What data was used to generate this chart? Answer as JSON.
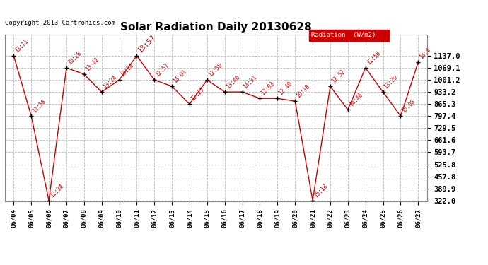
{
  "title": "Solar Radiation Daily 20130628",
  "copyright": "Copyright 2013 Cartronics.com",
  "legend_label": "Radiation  (W/m2)",
  "dates": [
    "06/04",
    "06/05",
    "06/06",
    "06/07",
    "06/08",
    "06/09",
    "06/10",
    "06/11",
    "06/12",
    "06/13",
    "06/14",
    "06/15",
    "06/16",
    "06/17",
    "06/18",
    "06/19",
    "06/20",
    "06/21",
    "06/22",
    "06/23",
    "06/24",
    "06/25",
    "06/26",
    "06/27"
  ],
  "values": [
    1137.0,
    797.4,
    322.0,
    1069.1,
    1033.0,
    933.2,
    1001.2,
    1137.0,
    1001.2,
    965.0,
    865.3,
    1001.2,
    933.2,
    933.2,
    897.0,
    897.0,
    881.3,
    322.0,
    965.0,
    833.0,
    1069.1,
    933.2,
    797.4,
    1101.0
  ],
  "time_labels": [
    "13:11",
    "11:58",
    "12:34",
    "10:28",
    "13:42",
    "13:24",
    "13:24",
    "13:57",
    "12:57",
    "14:01",
    "12:27",
    "12:56",
    "13:46",
    "14:31",
    "12:03",
    "12:40",
    "10:18",
    "15:18",
    "12:52",
    "14:46",
    "12:56",
    "13:29",
    "15:08",
    "14:4"
  ],
  "peak_label_idx": 7,
  "ylim_min": 322.0,
  "ylim_max": 1137.0,
  "ytick_values": [
    322.0,
    389.9,
    457.8,
    525.8,
    593.7,
    661.6,
    729.5,
    797.4,
    865.3,
    933.2,
    1001.2,
    1069.1,
    1137.0
  ],
  "line_color": "#cc0000",
  "marker_color": "#000000",
  "bg_color": "#ffffff",
  "plot_bg_color": "#ffffff",
  "grid_color": "#bbbbbb",
  "title_color": "#000000",
  "copyright_color": "#000000",
  "label_color": "#cc0000",
  "legend_bg": "#cc0000",
  "legend_fg": "#ffffff"
}
